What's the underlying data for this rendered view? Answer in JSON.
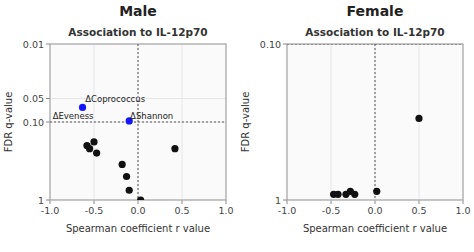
{
  "chart_data": [
    {
      "type": "scatter",
      "title": "Male",
      "subtitle": "Association to IL-12p70",
      "x_label": "Spearman coefficient r value",
      "y_label": "FDR q-value",
      "log": "y",
      "xlim": [
        -1.0,
        1.0
      ],
      "xticks": [
        {
          "value": -1.0,
          "label": "-1.0"
        },
        -0.5,
        {
          "value": 0.0,
          "label": "0.0"
        },
        0.5,
        {
          "value": 1.0,
          "label": "1.0"
        }
      ],
      "ylim": [
        1.0,
        0.01
      ],
      "yticks": [
        0.01,
        0.05,
        {
          "value": 0.1,
          "label": "0.10"
        },
        1
      ],
      "vline": 0,
      "hline": 0.1,
      "series": [
        {
          "color": "#111111",
          "x": [
            -0.58,
            -0.55,
            -0.5,
            -0.47,
            -0.18,
            -0.13,
            -0.1,
            0.03,
            0.42
          ],
          "values": [
            0.2,
            0.22,
            0.18,
            0.25,
            0.35,
            0.5,
            0.75,
            1.0,
            0.22
          ]
        },
        {
          "color": "#1414FF",
          "x": [
            -0.63,
            -0.1
          ],
          "values": [
            0.065,
            0.097
          ]
        }
      ],
      "annotations": [
        {
          "text": "ΔCoprococcus",
          "x": -0.6,
          "y": 0.05
        },
        {
          "text": "ΔEveness",
          "x": -0.97,
          "y": 0.083
        },
        {
          "text": "ΔShannon",
          "x": -0.09,
          "y": 0.083
        }
      ]
    },
    {
      "type": "scatter",
      "title": "Female",
      "subtitle": "Association to IL-12p70",
      "x_label": "Spearman coefficient r value",
      "y_label": "FDR q-value",
      "log": "y",
      "xlim": [
        -1.0,
        1.0
      ],
      "xticks": [
        {
          "value": -1.0,
          "label": "-1.0"
        },
        -0.5,
        {
          "value": 0.0,
          "label": "0.0"
        },
        0.5,
        {
          "value": 1.0,
          "label": "1.0"
        }
      ],
      "ylim": [
        1.0,
        0.1
      ],
      "yticks": [
        {
          "value": 0.1,
          "label": "0.10"
        },
        1
      ],
      "vline": 0,
      "hline": 0.1,
      "series": [
        {
          "color": "#111111",
          "x": [
            -0.47,
            -0.42,
            -0.33,
            -0.28,
            -0.23,
            0.02,
            0.5
          ],
          "values": [
            0.92,
            0.92,
            0.92,
            0.88,
            0.92,
            0.88,
            0.3
          ]
        }
      ]
    }
  ]
}
